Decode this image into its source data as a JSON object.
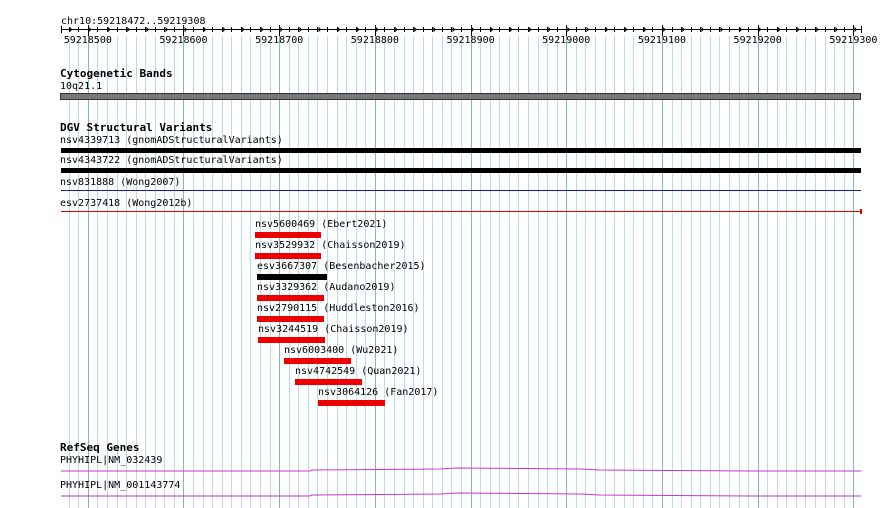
{
  "region": {
    "label": "chr10:59218472..59219308",
    "start": 59218472,
    "end": 59219308,
    "ticks": [
      {
        "label": "59218500",
        "pos": 59218500
      },
      {
        "label": "59218600",
        "pos": 59218600
      },
      {
        "label": "59218700",
        "pos": 59218700
      },
      {
        "label": "59218800",
        "pos": 59218800
      },
      {
        "label": "59218900",
        "pos": 59218900
      },
      {
        "label": "59219000",
        "pos": 59219000
      },
      {
        "label": "59219100",
        "pos": 59219100
      },
      {
        "label": "59219200",
        "pos": 59219200
      },
      {
        "label": "59219300",
        "pos": 59219300
      }
    ]
  },
  "cytoband": {
    "title": "Cytogenetic Bands",
    "band": "10q21.1",
    "color": "#777777"
  },
  "dgv": {
    "title": "DGV Structural Variants",
    "colors": {
      "black": "#000000",
      "red": "#ee0000",
      "blue": "#1a1aa0"
    },
    "variants": [
      {
        "name": "nsv4339713 (gnomADStructuralVariants)",
        "start": 59218472,
        "end": 59219308,
        "color": "black",
        "extends": true
      },
      {
        "name": "nsv4343722 (gnomADStructuralVariants)",
        "start": 59218472,
        "end": 59219308,
        "color": "black",
        "extends": true
      },
      {
        "name": "nsv831888 (Wong2007)",
        "start": 59218472,
        "end": 59219308,
        "color": "blue",
        "extends": true
      },
      {
        "name": "esv2737418 (Wong2012b)",
        "start": 59218472,
        "end": 59219308,
        "color": "red",
        "extends": true
      },
      {
        "name": "nsv5600469 (Ebert2021)",
        "start": 59218675,
        "end": 59218744,
        "color": "red"
      },
      {
        "name": "nsv3529932 (Chaisson2019)",
        "start": 59218675,
        "end": 59218744,
        "color": "red"
      },
      {
        "name": "esv3667307 (Besenbacher2015)",
        "start": 59218677,
        "end": 59218750,
        "color": "black"
      },
      {
        "name": "nsv3329362 (Audano2019)",
        "start": 59218677,
        "end": 59218747,
        "color": "red"
      },
      {
        "name": "nsv2790115 (Huddleston2016)",
        "start": 59218677,
        "end": 59218747,
        "color": "red"
      },
      {
        "name": "nsv3244519 (Chaisson2019)",
        "start": 59218678,
        "end": 59218748,
        "color": "red"
      },
      {
        "name": "nsv6003400 (Wu2021)",
        "start": 59218705,
        "end": 59218775,
        "color": "red"
      },
      {
        "name": "nsv4742549 (Quan2021)",
        "start": 59218717,
        "end": 59218787,
        "color": "red"
      },
      {
        "name": "nsv3064126 (Fan2017)",
        "start": 59218741,
        "end": 59218811,
        "color": "red"
      }
    ]
  },
  "refseq": {
    "title": "RefSeq Genes",
    "color": "#cc33cc",
    "genes": [
      {
        "name": "PHYHIPL|NM_032439"
      },
      {
        "name": "PHYHIPL|NM_001143774"
      }
    ]
  }
}
